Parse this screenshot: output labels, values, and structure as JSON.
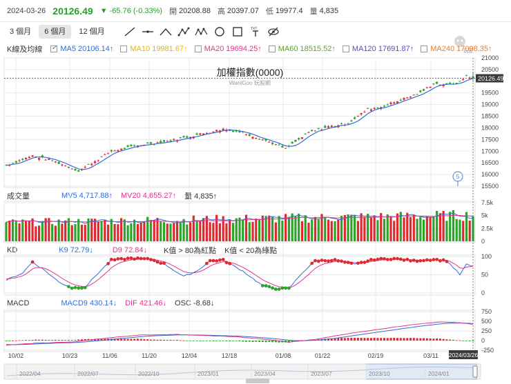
{
  "header": {
    "date": "2024-03-26",
    "price": "20126.49",
    "change": "▼ -65.76 (-0.33%)",
    "open_label": "開",
    "open": "20208.88",
    "high_label": "高",
    "high": "20397.07",
    "low_label": "低",
    "low": "19977.4",
    "vol_label": "量",
    "vol": "4,835"
  },
  "toolbar": {
    "periods": [
      "3 個月",
      "6 個月",
      "12 個月"
    ],
    "active_period": 1,
    "tools": [
      "trend-line-icon",
      "horizontal-line-icon",
      "wedge-line-icon",
      "pattern-abc-icon",
      "pattern-abcd-icon",
      "circle-tool-icon",
      "rectangle-tool-icon",
      "text-tool-icon",
      "hide-eye-icon"
    ],
    "text_tool_label": "TXT"
  },
  "ma_legend": {
    "label": "K線及均線",
    "items": [
      {
        "text": "MA5 20106.14↑",
        "color": "#2f6cd8",
        "checked": true
      },
      {
        "text": "MA10 19981.67↑",
        "color": "#e8b400",
        "checked": false
      },
      {
        "text": "MA20 19694.25↑",
        "color": "#e0338a",
        "checked": false
      },
      {
        "text": "MA60 18515.52↑",
        "color": "#5aa02c",
        "checked": false
      },
      {
        "text": "MA120 17691.87↑",
        "color": "#6a3fc8",
        "checked": false
      },
      {
        "text": "MA240 17098.35↑",
        "color": "#e87a2c",
        "checked": false
      }
    ]
  },
  "watermark_text": "玩股網",
  "main_chart": {
    "title": "加權指數(0000)",
    "subtitle": "WantGoo 玩股網",
    "current_price_tag": "20126.49",
    "event_marker": "5",
    "ylim": [
      15500,
      21000
    ],
    "ytick_labels": [
      "21000",
      "20500",
      "19500",
      "19000",
      "18500",
      "18000",
      "17500",
      "17000",
      "16500",
      "16000",
      "15500"
    ]
  },
  "volume_legend": {
    "label": "成交量",
    "mv5": "MV5 4,717.88↑",
    "mv20": "MV20 4,655.27↑",
    "vol": "量 4,835↑"
  },
  "volume_chart": {
    "ytick_labels": [
      "7.5k",
      "5k",
      "2.5k",
      "0"
    ]
  },
  "kd_legend": {
    "label": "KD",
    "k": "K9 72.79↓",
    "d": "D9 72.84↓",
    "note1": "K值 > 80為紅點",
    "note2": "K值 < 20為綠點"
  },
  "kd_chart": {
    "ytick_labels": [
      "100",
      "50",
      "0"
    ]
  },
  "macd_legend": {
    "label": "MACD",
    "macd": "MACD9 430.14↓",
    "dif": "DIF 421.46↓",
    "osc": "OSC -8.68↓"
  },
  "macd_chart": {
    "ytick_labels": [
      "750",
      "500",
      "250",
      "0",
      "-250"
    ]
  },
  "x_axis": {
    "tick_labels": [
      "10/02",
      "10/23",
      "11/06",
      "11/20",
      "12/04",
      "12/18",
      "01/08",
      "01/22",
      "02/19",
      "03/11"
    ],
    "current_date_tag": "2024/03/26"
  },
  "navigator": {
    "labels": [
      "2022/04",
      "2022/07",
      "2022/10",
      "2023/01",
      "2023/04",
      "2023/07",
      "2023/10",
      "2024/01"
    ]
  },
  "colors": {
    "up": "#e0282e",
    "down": "#2aa52a",
    "ma5": "#2f6cd8",
    "d_line": "#e0338a",
    "grid": "#e8e8e8"
  },
  "chart_data": {
    "type": "candlestick",
    "title": "加權指數(0000)",
    "ylim": [
      15500,
      21000
    ],
    "x_range": [
      "2023-10-02",
      "2024-03-26"
    ],
    "last_candle": {
      "open": 20208.88,
      "high": 20397.07,
      "low": 19977.4,
      "close": 20126.49,
      "volume": 4835
    },
    "close_anchors": [
      [
        0,
        16400
      ],
      [
        8,
        16800
      ],
      [
        14,
        16600
      ],
      [
        22,
        16150
      ],
      [
        28,
        16650
      ],
      [
        32,
        17000
      ],
      [
        42,
        17300
      ],
      [
        50,
        17450
      ],
      [
        58,
        17700
      ],
      [
        66,
        17950
      ],
      [
        72,
        17800
      ],
      [
        76,
        17600
      ],
      [
        80,
        17400
      ],
      [
        85,
        17100
      ],
      [
        92,
        17800
      ],
      [
        98,
        18050
      ],
      [
        104,
        18200
      ],
      [
        110,
        18800
      ],
      [
        114,
        18900
      ],
      [
        118,
        19100
      ],
      [
        126,
        19500
      ],
      [
        130,
        19900
      ],
      [
        134,
        19850
      ],
      [
        138,
        19950
      ],
      [
        140,
        20250
      ],
      [
        142,
        20126
      ]
    ],
    "ma5_last": 20106.14,
    "volume": {
      "ylim": [
        0,
        7500
      ],
      "typical": 4600,
      "mv5_last": 4717.88,
      "mv20_last": 4655.27,
      "vol_last": 4835
    },
    "kd": {
      "ylim": [
        0,
        100
      ],
      "k_anchors": [
        [
          0,
          35
        ],
        [
          5,
          55
        ],
        [
          8,
          85
        ],
        [
          12,
          60
        ],
        [
          16,
          30
        ],
        [
          20,
          14
        ],
        [
          24,
          16
        ],
        [
          28,
          55
        ],
        [
          32,
          90
        ],
        [
          38,
          95
        ],
        [
          44,
          92
        ],
        [
          48,
          80
        ],
        [
          54,
          45
        ],
        [
          58,
          60
        ],
        [
          62,
          88
        ],
        [
          66,
          90
        ],
        [
          72,
          60
        ],
        [
          78,
          20
        ],
        [
          82,
          12
        ],
        [
          86,
          12
        ],
        [
          90,
          55
        ],
        [
          94,
          88
        ],
        [
          100,
          90
        ],
        [
          106,
          78
        ],
        [
          112,
          92
        ],
        [
          118,
          94
        ],
        [
          124,
          88
        ],
        [
          130,
          92
        ],
        [
          134,
          88
        ],
        [
          136,
          70
        ],
        [
          138,
          50
        ],
        [
          140,
          78
        ],
        [
          142,
          72.79
        ]
      ],
      "k_last": 72.79,
      "d_last": 72.84
    },
    "macd": {
      "ylim": [
        -250,
        750
      ],
      "dif_anchors": [
        [
          0,
          -120
        ],
        [
          10,
          -60
        ],
        [
          20,
          -40
        ],
        [
          30,
          60
        ],
        [
          40,
          140
        ],
        [
          52,
          160
        ],
        [
          60,
          130
        ],
        [
          70,
          100
        ],
        [
          80,
          20
        ],
        [
          86,
          -40
        ],
        [
          94,
          30
        ],
        [
          104,
          180
        ],
        [
          114,
          300
        ],
        [
          124,
          420
        ],
        [
          132,
          480
        ],
        [
          138,
          460
        ],
        [
          142,
          421.46
        ]
      ],
      "macd9_last": 430.14,
      "dif_last": 421.46,
      "osc_last": -8.68
    }
  }
}
